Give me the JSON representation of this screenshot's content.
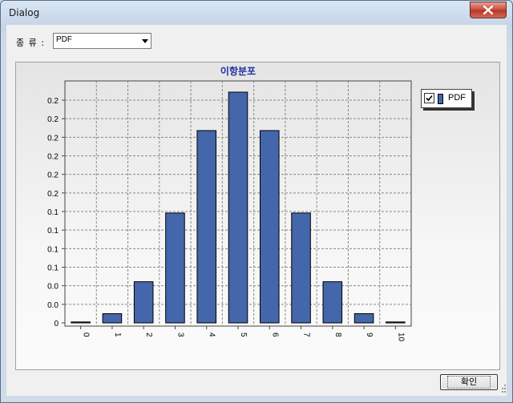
{
  "window": {
    "title": "Dialog"
  },
  "type_selector": {
    "label": "종 류 :",
    "value": "PDF"
  },
  "legend": {
    "label": "PDF",
    "checked": true
  },
  "buttons": {
    "ok_label": "확인"
  },
  "colors": {
    "bar_fill": "#4466aa",
    "title_color": "#1e2fa0"
  },
  "chart_data": {
    "type": "bar",
    "title": "이항분포",
    "categories": [
      "0",
      "1",
      "2",
      "3",
      "4",
      "5",
      "6",
      "7",
      "8",
      "9",
      "10"
    ],
    "series": [
      {
        "name": "PDF",
        "values": [
          0.001,
          0.0098,
          0.0439,
          0.1172,
          0.2051,
          0.2461,
          0.2051,
          0.1172,
          0.0439,
          0.0098,
          0.001
        ]
      }
    ],
    "ytick_labels": [
      "0",
      "0.0",
      "0.0",
      "0.1",
      "0.1",
      "0.1",
      "0.1",
      "0.2",
      "0.2",
      "0.2",
      "0.2",
      "0.2",
      "0.2"
    ],
    "ylim": [
      0,
      0.24
    ],
    "grid": true,
    "legend_position": "right"
  }
}
